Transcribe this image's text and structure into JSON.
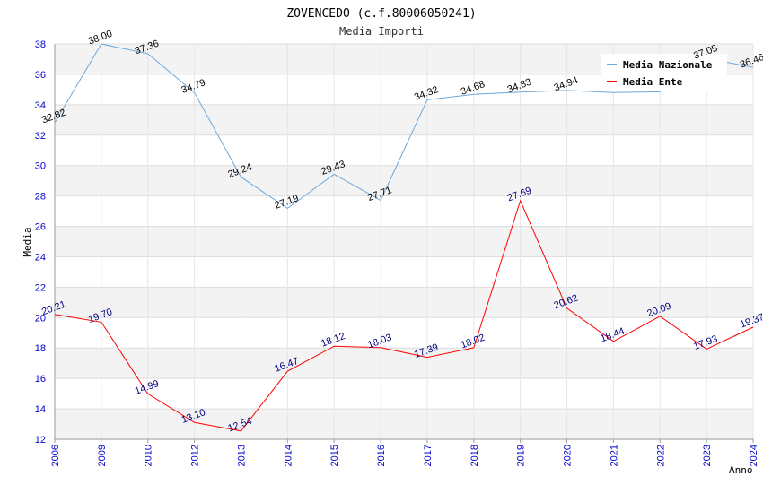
{
  "chart_data": {
    "type": "line",
    "title": "ZOVENCEDO (c.f.80006050241)",
    "subtitle": "Media Importi",
    "xlabel": "Anno",
    "ylabel": "Media",
    "ylim": [
      12,
      38
    ],
    "ytick_step": 2,
    "categories": [
      "2006",
      "2009",
      "2010",
      "2012",
      "2013",
      "2014",
      "2015",
      "2016",
      "2017",
      "2018",
      "2019",
      "2020",
      "2021",
      "2022",
      "2023",
      "2024"
    ],
    "series": [
      {
        "name": "Media Nazionale",
        "color": "#6ea8dc",
        "values": [
          32.82,
          38.0,
          37.36,
          34.79,
          29.24,
          27.19,
          29.43,
          27.71,
          34.32,
          34.68,
          34.83,
          34.94,
          34.8,
          34.85,
          37.05,
          36.46
        ],
        "labels": [
          "32.82",
          "38.00",
          "37.36",
          "34.79",
          "29.24",
          "27.19",
          "29.43",
          "27.71",
          "34.32",
          "34.68",
          "34.83",
          "34.94",
          "",
          "",
          "37.05",
          "36.46"
        ]
      },
      {
        "name": "Media Ente",
        "color": "#ff0000",
        "values": [
          20.21,
          19.7,
          14.99,
          13.1,
          12.54,
          16.47,
          18.12,
          18.03,
          17.39,
          18.02,
          27.69,
          20.62,
          18.44,
          20.09,
          17.93,
          19.37
        ],
        "labels": [
          "20.21",
          "19.70",
          "14.99",
          "13.10",
          "12.54",
          "16.47",
          "18.12",
          "18.03",
          "17.39",
          "18.02",
          "27.69",
          "20.62",
          "18.44",
          "20.09",
          "17.93",
          "19.37"
        ]
      }
    ],
    "legend_position": "top-right",
    "grid": true
  }
}
